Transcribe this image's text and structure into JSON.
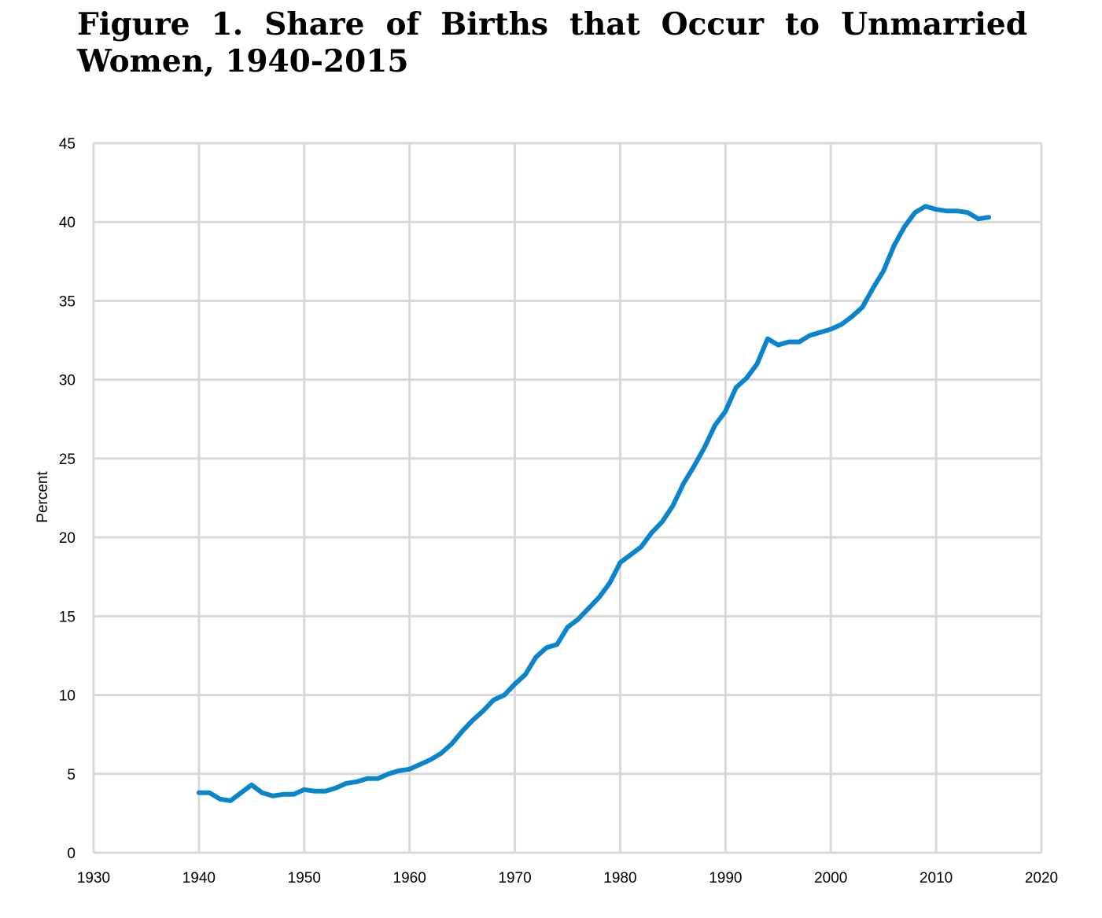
{
  "title": "Figure 1. Share of Births that Occur to Unmarried Women, 1940-2015",
  "chart_data": {
    "type": "line",
    "title": "Figure 1. Share of Births that Occur to Unmarried Women, 1940-2015",
    "xlabel": "",
    "ylabel": "Percent",
    "xlim": [
      1930,
      2020
    ],
    "ylim": [
      0,
      45
    ],
    "xticks": [
      1930,
      1940,
      1950,
      1960,
      1970,
      1980,
      1990,
      2000,
      2010,
      2020
    ],
    "yticks": [
      0,
      5,
      10,
      15,
      20,
      25,
      30,
      35,
      40,
      45
    ],
    "grid": true,
    "line_color": "#0a84cc",
    "grid_color": "#d9d9d9",
    "series": [
      {
        "x": [
          1940,
          1941,
          1942,
          1943,
          1944,
          1945,
          1946,
          1947,
          1948,
          1949,
          1950,
          1951,
          1952,
          1953,
          1954,
          1955,
          1956,
          1957,
          1958,
          1959,
          1960,
          1961,
          1962,
          1963,
          1964,
          1965,
          1966,
          1967,
          1968,
          1969,
          1970,
          1971,
          1972,
          1973,
          1974,
          1975,
          1976,
          1977,
          1978,
          1979,
          1980,
          1981,
          1982,
          1983,
          1984,
          1985,
          1986,
          1987,
          1988,
          1989,
          1990,
          1991,
          1992,
          1993,
          1994,
          1995,
          1996,
          1997,
          1998,
          1999,
          2000,
          2001,
          2002,
          2003,
          2004,
          2005,
          2006,
          2007,
          2008,
          2009,
          2010,
          2011,
          2012,
          2013,
          2014,
          2015
        ],
        "y": [
          3.8,
          3.8,
          3.4,
          3.3,
          3.8,
          4.3,
          3.8,
          3.6,
          3.7,
          3.7,
          4.0,
          3.9,
          3.9,
          4.1,
          4.4,
          4.5,
          4.7,
          4.7,
          5.0,
          5.2,
          5.3,
          5.6,
          5.9,
          6.3,
          6.9,
          7.7,
          8.4,
          9.0,
          9.7,
          10.0,
          10.7,
          11.3,
          12.4,
          13.0,
          13.2,
          14.3,
          14.8,
          15.5,
          16.2,
          17.1,
          18.4,
          18.9,
          19.4,
          20.3,
          21.0,
          22.0,
          23.4,
          24.5,
          25.7,
          27.1,
          28.0,
          29.5,
          30.1,
          31.0,
          32.6,
          32.2,
          32.4,
          32.4,
          32.8,
          33.0,
          33.2,
          33.5,
          34.0,
          34.6,
          35.8,
          36.9,
          38.5,
          39.7,
          40.6,
          41.0,
          40.8,
          40.7,
          40.7,
          40.6,
          40.2,
          40.3
        ]
      }
    ]
  }
}
